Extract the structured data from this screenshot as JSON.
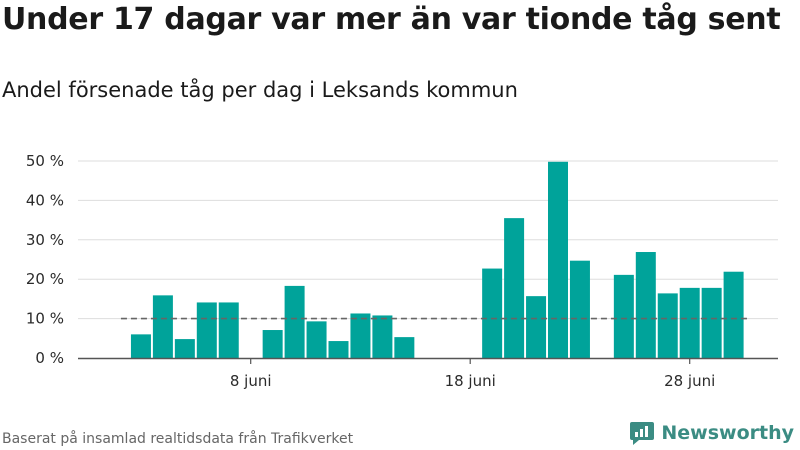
{
  "title": "Under 17 dagar var mer än var tionde tåg sent",
  "subtitle": "Andel försenade tåg per dag i Leksands kommun",
  "source": "Baserat på insamlad realtidsdata från Trafikverket",
  "brand": {
    "name": "Newsworthy",
    "icon": "newsworthy-logo-icon"
  },
  "colors": {
    "bar": "#00a39a",
    "reference_line": "#666666",
    "grid": "#dddddd",
    "brand": "#3b8c83"
  },
  "chart_data": {
    "type": "bar",
    "title": "Under 17 dagar var mer än var tionde tåg sent",
    "subtitle": "Andel försenade tåg per dag i Leksands kommun",
    "x_start": "2 juni",
    "x_end": "29 juni",
    "x_tick_days": [
      8,
      18,
      28
    ],
    "x_tick_labels": [
      "8 juni",
      "18 juni",
      "28 juni"
    ],
    "days": [
      3,
      4,
      5,
      6,
      7,
      9,
      10,
      11,
      12,
      13,
      14,
      15,
      19,
      20,
      21,
      22,
      23,
      25,
      26,
      27,
      28,
      29,
      30
    ],
    "values": [
      6.0,
      15.9,
      4.8,
      14.1,
      14.1,
      7.1,
      18.3,
      9.3,
      4.3,
      11.3,
      10.8,
      5.3,
      22.7,
      35.5,
      15.7,
      49.8,
      24.7,
      21.1,
      26.9,
      16.4,
      17.8,
      17.8,
      21.9
    ],
    "y_ticks": [
      0,
      10,
      20,
      30,
      40,
      50
    ],
    "y_tick_labels": [
      "0 %",
      "10 %",
      "20 %",
      "30 %",
      "40 %",
      "50 %"
    ],
    "ylim": [
      0,
      50
    ],
    "reference_value": 10,
    "grid": true,
    "legend": "none"
  }
}
